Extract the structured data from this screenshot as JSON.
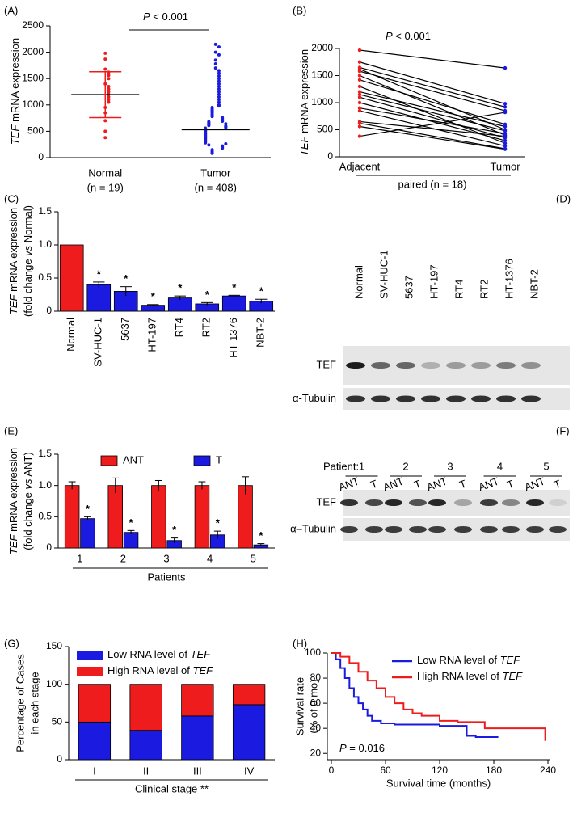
{
  "chart_data": [
    {
      "type": "dot",
      "panel_label": "(A)",
      "y_label": [
        "TEF",
        " mRNA expression"
      ],
      "annotation": [
        "P",
        " < 0.001"
      ],
      "categories": [
        "Normal",
        "Tumor"
      ],
      "category_notes": [
        "(n = 19)",
        "(n = 408)"
      ],
      "groups": [
        {
          "color": "#ee1c1c",
          "values": [
            1980,
            1870,
            1680,
            1620,
            1560,
            1500,
            1400,
            1350,
            1300,
            1250,
            1200,
            1150,
            1100,
            1050,
            950,
            850,
            700,
            500,
            380
          ],
          "mean": 1195,
          "sd": 435
        },
        {
          "color": "#1a1ae0",
          "values": [
            2150,
            2100,
            2000,
            1950,
            1850,
            1780,
            1700,
            1650,
            1600,
            1550,
            1500,
            1450,
            1400,
            1350,
            1300,
            1250,
            1200,
            1150,
            1100,
            1050,
            1000,
            980,
            950,
            920,
            900,
            880,
            850,
            820,
            800,
            780,
            760,
            740,
            720,
            700,
            690,
            680,
            660,
            650,
            640,
            620,
            610,
            600,
            590,
            580,
            570,
            560,
            550,
            540,
            530,
            520,
            510,
            500,
            490,
            480,
            470,
            460,
            450,
            440,
            430,
            420,
            410,
            400,
            390,
            380,
            370,
            360,
            350,
            340,
            330,
            320,
            310,
            300,
            290,
            280,
            260,
            240,
            220,
            200,
            180,
            150,
            120,
            100,
            80
          ],
          "mean": 530
        }
      ],
      "ylim": [
        0,
        2500
      ],
      "yticks": [
        0,
        500,
        1000,
        1500,
        2000,
        2500
      ]
    },
    {
      "type": "line",
      "panel_label": "(B)",
      "y_label": [
        "TEF",
        " mRNA expression"
      ],
      "annotation": [
        "P",
        " < 0.001"
      ],
      "categories": [
        "Adjacent",
        "Tumor"
      ],
      "x_label": "paired (n = 18)",
      "line_color": "#000000",
      "point_colors": [
        "#ee1c1c",
        "#1a1ae0"
      ],
      "pairs": [
        [
          1970,
          1640
        ],
        [
          1750,
          980
        ],
        [
          1650,
          920
        ],
        [
          1620,
          500
        ],
        [
          1580,
          850
        ],
        [
          1500,
          400
        ],
        [
          1420,
          600
        ],
        [
          1300,
          250
        ],
        [
          1200,
          560
        ],
        [
          1150,
          480
        ],
        [
          1100,
          350
        ],
        [
          1000,
          300
        ],
        [
          900,
          430
        ],
        [
          850,
          200
        ],
        [
          650,
          380
        ],
        [
          620,
          150
        ],
        [
          560,
          140
        ],
        [
          380,
          820
        ]
      ],
      "ylim": [
        0,
        2000
      ],
      "yticks": [
        0,
        500,
        1000,
        1500,
        2000
      ]
    },
    {
      "type": "bar",
      "panel_label": "(C)",
      "y_label": [
        [
          "TEF",
          " mRNA expression"
        ],
        [
          "(fold change ",
          "vs",
          " Normal)"
        ]
      ],
      "categories": [
        "Normal",
        "SV-HUC-1",
        "5637",
        "HT-197",
        "RT4",
        "RT2",
        "HT-1376",
        "NBT-2"
      ],
      "values": [
        1.0,
        0.4,
        0.3,
        0.09,
        0.2,
        0.11,
        0.23,
        0.15
      ],
      "errors": [
        0,
        0.04,
        0.07,
        0.01,
        0.03,
        0.02,
        0.01,
        0.03
      ],
      "annotations": [
        null,
        "*",
        "*",
        "*",
        "*",
        "*",
        "*",
        "*"
      ],
      "colors": [
        "#ee1c1c",
        "#1a1ae0",
        "#1a1ae0",
        "#1a1ae0",
        "#1a1ae0",
        "#1a1ae0",
        "#1a1ae0",
        "#1a1ae0"
      ],
      "ylim": [
        0,
        1.5
      ],
      "yticks": [
        0,
        0.5,
        {
          "value": 1,
          "label": "1.0"
        },
        {
          "value": 1.5,
          "label": "1.5"
        }
      ]
    },
    {
      "type": "bar",
      "panel_label": "(E)",
      "y_label": [
        [
          "TEF",
          " mRNA expression"
        ],
        [
          "(fold change ",
          "vs",
          " ANT)"
        ]
      ],
      "categories": [
        "1",
        "2",
        "3",
        "4",
        "5"
      ],
      "x_label": "Patients",
      "series": [
        {
          "name": "ANT",
          "color": "#ee1c1c",
          "values": [
            1.0,
            1.0,
            1.0,
            1.0,
            1.0
          ],
          "errors": [
            0.06,
            0.12,
            0.08,
            0.06,
            0.14
          ]
        },
        {
          "name": "T",
          "color": "#1a1ae0",
          "values": [
            0.47,
            0.25,
            0.12,
            0.21,
            0.05
          ],
          "errors": [
            0.03,
            0.03,
            0.04,
            0.06,
            0.02
          ],
          "annotations": [
            "*",
            "*",
            "*",
            "*",
            "*"
          ]
        }
      ],
      "ylim": [
        0,
        1.5
      ],
      "yticks": [
        0,
        0.5,
        {
          "value": 1,
          "label": "1.0"
        },
        {
          "value": 1.5,
          "label": "1.5"
        }
      ]
    },
    {
      "type": "stacked_bar",
      "panel_label": "(G)",
      "y_label": [
        "Percentage of Cases",
        "in each stage"
      ],
      "categories": [
        "I",
        "II",
        "III",
        "IV"
      ],
      "x_label": "Clinical stage **",
      "series": [
        {
          "name": [
            "Low RNA level of ",
            "TEF"
          ],
          "color": "#1a1ae0",
          "values": [
            50,
            39,
            58,
            73
          ]
        },
        {
          "name": [
            "High RNA level of ",
            "TEF"
          ],
          "color": "#ee1c1c",
          "values": [
            50,
            61,
            42,
            27
          ]
        }
      ],
      "ylim": [
        0,
        150
      ],
      "yticks": [
        0,
        50,
        100,
        150
      ]
    },
    {
      "type": "step",
      "panel_label": "(H)",
      "y_label": [
        "Survival rate",
        "(% of 0 mo)"
      ],
      "x_label": "Survival time (months)",
      "annotation": [
        "P",
        " = 0.016"
      ],
      "series": [
        {
          "name": [
            "Low RNA level of ",
            "TEF"
          ],
          "color": "#1a1ae0",
          "x": [
            0,
            5,
            10,
            15,
            20,
            25,
            30,
            35,
            40,
            45,
            55,
            70,
            90,
            120,
            150,
            160,
            185
          ],
          "values": [
            100,
            95,
            88,
            80,
            72,
            65,
            60,
            55,
            50,
            46,
            44,
            43,
            43,
            42,
            34,
            33,
            33
          ]
        },
        {
          "name": [
            "High RNA level of ",
            "TEF"
          ],
          "color": "#ee1c1c",
          "x": [
            0,
            10,
            20,
            30,
            40,
            50,
            60,
            70,
            80,
            90,
            100,
            120,
            140,
            170,
            200,
            235,
            237
          ],
          "values": [
            100,
            97,
            92,
            85,
            78,
            72,
            65,
            60,
            55,
            52,
            50,
            46,
            45,
            40,
            40,
            40,
            30
          ]
        }
      ],
      "xlim": [
        0,
        240
      ],
      "xticks": [
        0,
        60,
        120,
        180,
        240
      ],
      "ylim": [
        15,
        100
      ],
      "yticks": [
        20,
        40,
        60,
        80,
        100
      ]
    }
  ],
  "blots": [
    {
      "panel_label": "(D)",
      "lanes": [
        "Normal",
        "SV-HUC-1",
        "5637",
        "HT-197",
        "RT4",
        "RT2",
        "HT-1376",
        "NBT-2"
      ],
      "rows": [
        "TEF",
        "α-Tubulin"
      ]
    },
    {
      "panel_label": "(F)",
      "header": "Patient:",
      "patients": [
        "1",
        "2",
        "3",
        "4",
        "5"
      ],
      "lanes": [
        "ANT",
        "T",
        "ANT",
        "T",
        "ANT",
        "T",
        "ANT",
        "T",
        "ANT",
        "T"
      ],
      "rows": [
        "TEF",
        "α–Tubulin"
      ]
    }
  ]
}
